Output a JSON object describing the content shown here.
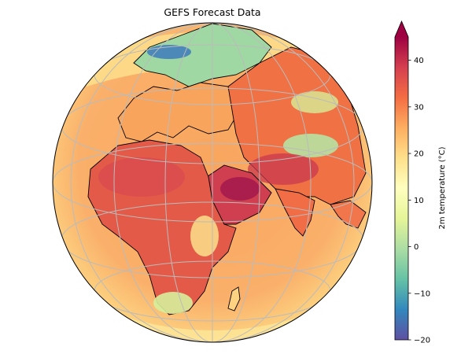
{
  "title": "GEFS Forecast Data",
  "colorbar": {
    "label": "2m temperature (°C)",
    "ticks": [
      {
        "value": 40,
        "label": "40"
      },
      {
        "value": 30,
        "label": "30"
      },
      {
        "value": 20,
        "label": "20"
      },
      {
        "value": 10,
        "label": "10"
      },
      {
        "value": 0,
        "label": "0"
      },
      {
        "value": -10,
        "label": "−10"
      },
      {
        "value": -20,
        "label": "−20"
      }
    ],
    "range": [
      -20,
      45
    ],
    "extend": "max",
    "colormap": "Spectral_r",
    "colors": [
      "#5e4fa2",
      "#3288bd",
      "#66c2a5",
      "#abdda4",
      "#e6f598",
      "#ffffbf",
      "#fee08b",
      "#fdae61",
      "#f46d43",
      "#d53e4f",
      "#9e0142"
    ]
  },
  "map": {
    "projection": "orthographic",
    "coastlines": true,
    "gridlines": true,
    "ocean_color": "#f7a15a",
    "land_hot_color": "#d5474f",
    "land_cold_color": "#8fd19d"
  }
}
